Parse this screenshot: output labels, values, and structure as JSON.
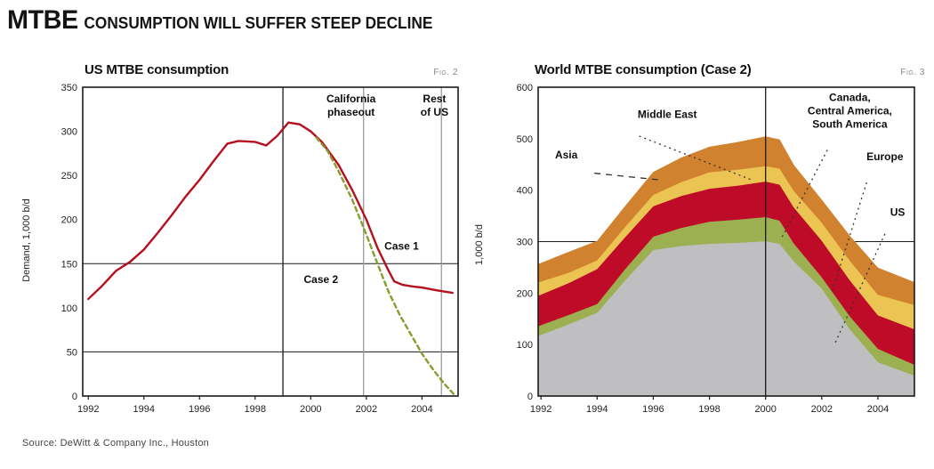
{
  "page": {
    "headline_lead": "MTBE",
    "headline_rest": "CONSUMPTION WILL SUFFER STEEP DECLINE",
    "source": "Source: DeWitt & Company Inc., Houston"
  },
  "colors": {
    "case1_line": "#b5101f",
    "case2_line": "#8a9c2c",
    "us_area": "#bfbfc1",
    "americas_area": "#9cb052",
    "europe_area": "#be0b28",
    "middle_east_area": "#ecc454",
    "asia_area": "#d1822f",
    "axis": "#1a1a1a",
    "ref_line_gray": "#9a9a9a",
    "leader": "#333333"
  },
  "chart_data": [
    {
      "type": "line",
      "title": "US MTBE consumption",
      "fig_label": "Fig. 2",
      "ylabel": "Demand, 1,000 b/d",
      "xlabel": "",
      "xlim": [
        1991.8,
        2005.3
      ],
      "ylim": [
        0,
        350
      ],
      "xticks": [
        1992,
        1994,
        1996,
        1998,
        2000,
        2002,
        2004
      ],
      "yticks": [
        0,
        50,
        100,
        150,
        200,
        250,
        300,
        350
      ],
      "hlines": [
        50,
        150
      ],
      "vlines": [
        {
          "x": 1999,
          "color_key": "axis",
          "label": "forecast-divider"
        },
        {
          "x": 2001.9,
          "color_key": "ref_line_gray",
          "label": "California phaseout"
        },
        {
          "x": 2004.7,
          "color_key": "ref_line_gray",
          "label": "Rest of US"
        }
      ],
      "series": [
        {
          "name": "Case 1",
          "color_key": "case1_line",
          "dash": "",
          "x": [
            1992,
            1992.5,
            1993,
            1993.5,
            1994,
            1994.5,
            1995,
            1995.5,
            1996,
            1996.5,
            1997,
            1997.4,
            1998,
            1998.4,
            1998.8,
            1999.2,
            1999.6,
            2000,
            2000.4,
            2001,
            2001.5,
            2002,
            2002.4,
            2002.8,
            2003,
            2003.3,
            2003.7,
            2004,
            2004.5,
            2005.1
          ],
          "y": [
            110,
            125,
            142,
            152,
            166,
            185,
            205,
            226,
            245,
            266,
            286,
            289,
            288,
            284,
            295,
            310,
            308,
            300,
            288,
            262,
            233,
            200,
            168,
            142,
            130,
            126,
            124,
            123,
            120,
            117
          ]
        },
        {
          "name": "Case 2",
          "color_key": "case2_line",
          "dash": "5 4",
          "x": [
            2000.2,
            2000.6,
            2001,
            2001.5,
            2002,
            2002.4,
            2002.8,
            2003.2,
            2003.6,
            2004,
            2004.4,
            2004.8,
            2005.15
          ],
          "y": [
            293,
            278,
            255,
            222,
            183,
            150,
            118,
            92,
            70,
            48,
            30,
            14,
            2
          ]
        }
      ],
      "annotations": [
        {
          "lines": [
            "California",
            "phaseout"
          ],
          "x": 2001.45,
          "y": 333,
          "anchor": "middle"
        },
        {
          "lines": [
            "Rest",
            "of US"
          ],
          "x": 2004.45,
          "y": 333,
          "anchor": "middle"
        },
        {
          "lines": [
            "Case 1"
          ],
          "x": 2002.65,
          "y": 166,
          "anchor": "start"
        },
        {
          "lines": [
            "Case 2"
          ],
          "x": 1999.75,
          "y": 128,
          "anchor": "start"
        }
      ]
    },
    {
      "type": "stacked-area",
      "title": "World MTBE consumption (Case 2)",
      "fig_label": "Fig. 3",
      "ylabel": "1,000 b/d",
      "xlabel": "",
      "xlim": [
        1991.9,
        2005.3
      ],
      "ylim": [
        0,
        600
      ],
      "xticks": [
        1992,
        1994,
        1996,
        1998,
        2000,
        2002,
        2004
      ],
      "yticks": [
        0,
        100,
        200,
        300,
        400,
        500,
        600
      ],
      "hlines": [
        300
      ],
      "vlines": [
        {
          "x": 2000,
          "color_key": "axis",
          "label": "forecast-divider"
        }
      ],
      "x": [
        1991.9,
        1993,
        1994,
        1995,
        1996,
        1997,
        1998,
        1999,
        2000,
        2000.5,
        2001,
        2002,
        2003,
        2004,
        2005.3
      ],
      "series": [
        {
          "name": "US",
          "color_key": "us_area",
          "values": [
            117,
            140,
            162,
            225,
            284,
            292,
            296,
            298,
            301,
            296,
            262,
            209,
            130,
            66,
            40
          ]
        },
        {
          "name": "Canada, Central America, South America",
          "color_key": "americas_area",
          "values": [
            19,
            18,
            17,
            22,
            26,
            35,
            43,
            45,
            47,
            45,
            35,
            22,
            25,
            26,
            21
          ]
        },
        {
          "name": "Europe",
          "color_key": "europe_area",
          "values": [
            59,
            62,
            68,
            62,
            59,
            62,
            64,
            66,
            69,
            70,
            70,
            71,
            70,
            65,
            69
          ]
        },
        {
          "name": "Middle East",
          "color_key": "middle_east_area",
          "values": [
            26,
            20,
            17,
            20,
            22,
            27,
            32,
            31,
            30,
            31,
            32,
            35,
            38,
            40,
            47
          ]
        },
        {
          "name": "Asia",
          "color_key": "asia_area",
          "values": [
            35,
            40,
            37,
            40,
            44,
            47,
            49,
            53,
            57,
            56,
            50,
            44,
            48,
            52,
            44
          ]
        }
      ],
      "annotations": [
        {
          "lines": [
            "Asia"
          ],
          "x": 1992.5,
          "y": 462,
          "anchor": "start",
          "leader": [
            1993.9,
            433,
            1996.2,
            420
          ],
          "dash": "7 6"
        },
        {
          "lines": [
            "Middle East"
          ],
          "x": 1996.5,
          "y": 540,
          "anchor": "middle",
          "leader": [
            1995.5,
            505,
            1999.5,
            420
          ],
          "dash": "2 4"
        },
        {
          "lines": [
            "Canada,",
            "Central America,",
            "South America"
          ],
          "x": 2003.0,
          "y": 573,
          "anchor": "middle",
          "leader": [
            2002.2,
            478,
            2000.55,
            305
          ],
          "dash": "2 4"
        },
        {
          "lines": [
            "Europe"
          ],
          "x": 2004.25,
          "y": 458,
          "anchor": "middle",
          "leader": [
            2003.6,
            415,
            2002.35,
            200
          ],
          "dash": "2 4"
        },
        {
          "lines": [
            "US"
          ],
          "x": 2004.7,
          "y": 350,
          "anchor": "middle",
          "leader": [
            2004.25,
            315,
            2002.45,
            100
          ],
          "dash": "2 4"
        }
      ]
    }
  ]
}
